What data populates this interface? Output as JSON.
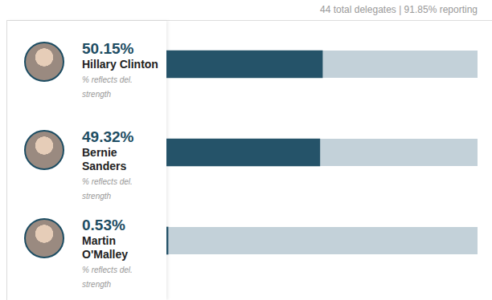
{
  "chart_data": {
    "type": "bar",
    "orientation": "horizontal",
    "subtitle": "44 total delegates | 91.85% reporting",
    "categories": [
      "Hillary Clinton",
      "Bernie Sanders",
      "Martin O'Malley"
    ],
    "values": [
      50.15,
      49.32,
      0.53
    ],
    "value_labels": [
      "50.15%",
      "49.32%",
      "0.53%"
    ],
    "data_labels": true,
    "annotations": [
      "% reflects del. strength",
      "% reflects del. strength",
      "% reflects del. strength"
    ],
    "color": "#255369",
    "xlim": [
      0,
      100
    ],
    "tick_labels": false,
    "grid": false
  }
}
